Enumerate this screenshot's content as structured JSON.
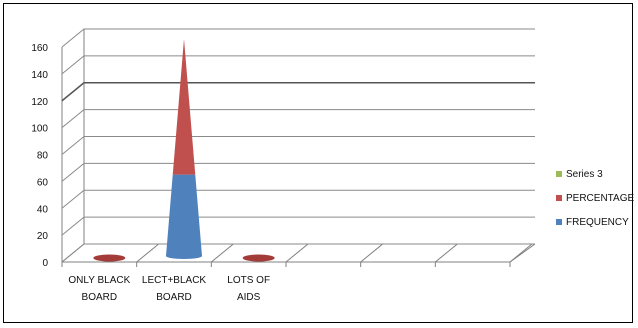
{
  "chart_data": {
    "type": "bar",
    "title": "",
    "xlabel": "",
    "ylabel": "",
    "ylim": [
      0,
      160
    ],
    "yticks": [
      0,
      20,
      40,
      60,
      80,
      100,
      120,
      140,
      160
    ],
    "grid": true,
    "legend_position": "right",
    "categories": [
      [
        "ONLY BLACK",
        "BOARD"
      ],
      [
        "LECT+BLACK",
        "BOARD"
      ],
      [
        "LOTS OF",
        "AIDS"
      ]
    ],
    "series": [
      {
        "name": "FREQUENCY",
        "color": "#4f81bd",
        "values": [
          1,
          60,
          1
        ]
      },
      {
        "name": "PERCENTAGE",
        "color": "#c0504d",
        "values": [
          1,
          100,
          1
        ]
      },
      {
        "name": "Series 3",
        "color": "#9bbb59",
        "values": [
          0,
          0,
          0
        ]
      }
    ]
  }
}
